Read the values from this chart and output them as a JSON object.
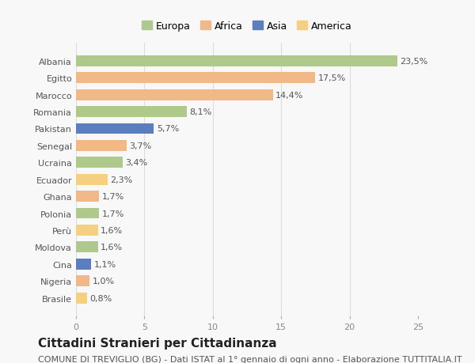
{
  "countries": [
    "Albania",
    "Egitto",
    "Marocco",
    "Romania",
    "Pakistan",
    "Senegal",
    "Ucraina",
    "Ecuador",
    "Ghana",
    "Polonia",
    "Perù",
    "Moldova",
    "Cina",
    "Nigeria",
    "Brasile"
  ],
  "values": [
    23.5,
    17.5,
    14.4,
    8.1,
    5.7,
    3.7,
    3.4,
    2.3,
    1.7,
    1.7,
    1.6,
    1.6,
    1.1,
    1.0,
    0.8
  ],
  "labels": [
    "23,5%",
    "17,5%",
    "14,4%",
    "8,1%",
    "5,7%",
    "3,7%",
    "3,4%",
    "2,3%",
    "1,7%",
    "1,7%",
    "1,6%",
    "1,6%",
    "1,1%",
    "1,0%",
    "0,8%"
  ],
  "continents": [
    "Europa",
    "Africa",
    "Africa",
    "Europa",
    "Asia",
    "Africa",
    "Europa",
    "America",
    "Africa",
    "Europa",
    "America",
    "Europa",
    "Asia",
    "Africa",
    "America"
  ],
  "continent_colors": {
    "Europa": "#aec98a",
    "Africa": "#f0b987",
    "Asia": "#5b7fbe",
    "America": "#f5d080"
  },
  "legend_order": [
    "Europa",
    "Africa",
    "Asia",
    "America"
  ],
  "title": "Cittadini Stranieri per Cittadinanza",
  "subtitle": "COMUNE DI TREVIGLIO (BG) - Dati ISTAT al 1° gennaio di ogni anno - Elaborazione TUTTITALIA.IT",
  "xlim": [
    0,
    25
  ],
  "xticks": [
    0,
    5,
    10,
    15,
    20,
    25
  ],
  "background_color": "#f8f8f8",
  "grid_color": "#dddddd",
  "title_fontsize": 11,
  "subtitle_fontsize": 8,
  "label_fontsize": 8,
  "tick_fontsize": 8,
  "legend_fontsize": 9
}
